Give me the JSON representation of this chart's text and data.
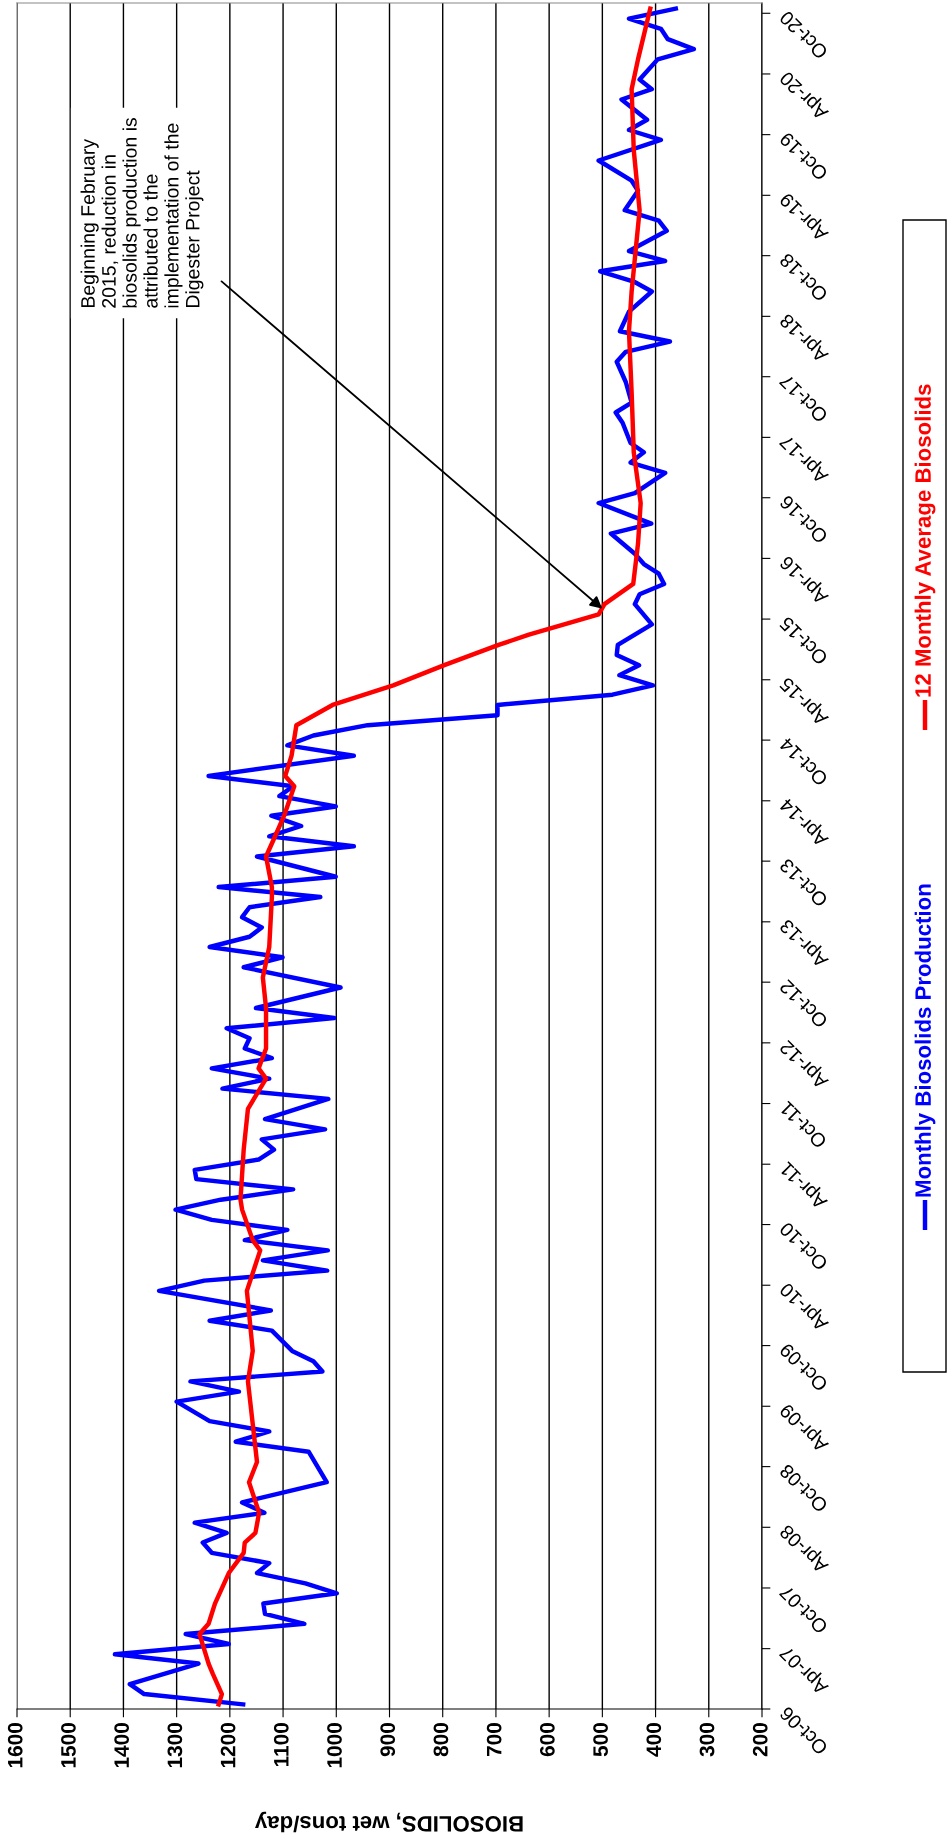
{
  "chart_data": {
    "type": "line",
    "orientation": "horizontal",
    "xlabel": "BIOSOLIDS, wet tons/day",
    "xlim": [
      1600,
      200
    ],
    "xticks": [
      1600,
      1500,
      1400,
      1300,
      1200,
      1100,
      1000,
      900,
      800,
      700,
      600,
      500,
      400,
      300,
      200
    ],
    "ylim": [
      "2006-10-01",
      "2020-11-01"
    ],
    "yticks": [
      {
        "value": "2006-10-01",
        "label": "Oct-06"
      },
      {
        "value": "2007-04-01",
        "label": "Apr-07"
      },
      {
        "value": "2007-10-01",
        "label": "Oct-07"
      },
      {
        "value": "2008-04-01",
        "label": "Apr-08"
      },
      {
        "value": "2008-10-01",
        "label": "Oct-08"
      },
      {
        "value": "2009-04-01",
        "label": "Apr-09"
      },
      {
        "value": "2009-10-01",
        "label": "Oct-09"
      },
      {
        "value": "2010-04-01",
        "label": "Apr-10"
      },
      {
        "value": "2010-10-01",
        "label": "Oct-10"
      },
      {
        "value": "2011-04-01",
        "label": "Apr-11"
      },
      {
        "value": "2011-10-01",
        "label": "Oct-11"
      },
      {
        "value": "2012-04-01",
        "label": "Apr-12"
      },
      {
        "value": "2012-10-01",
        "label": "Oct-12"
      },
      {
        "value": "2013-04-01",
        "label": "Apr-13"
      },
      {
        "value": "2013-10-01",
        "label": "Oct-13"
      },
      {
        "value": "2014-04-01",
        "label": "Apr-14"
      },
      {
        "value": "2014-10-01",
        "label": "Oct-14"
      },
      {
        "value": "2015-04-01",
        "label": "Apr-15"
      },
      {
        "value": "2015-10-01",
        "label": "Oct-15"
      },
      {
        "value": "2016-04-01",
        "label": "Apr-16"
      },
      {
        "value": "2016-10-01",
        "label": "Oct-16"
      },
      {
        "value": "2017-04-01",
        "label": "Apr-17"
      },
      {
        "value": "2017-10-01",
        "label": "Oct-17"
      },
      {
        "value": "2018-04-01",
        "label": "Apr-18"
      },
      {
        "value": "2018-10-01",
        "label": "Oct-18"
      },
      {
        "value": "2019-04-01",
        "label": "Apr-19"
      },
      {
        "value": "2019-10-01",
        "label": "Oct-19"
      },
      {
        "value": "2020-04-01",
        "label": "Apr-20"
      },
      {
        "value": "2020-10-01",
        "label": "Oct-20"
      }
    ],
    "grid": "x",
    "legend": "right",
    "line_style": "solid",
    "marker": "none",
    "annotations": [
      {
        "text": "Beginning February\n2015, reduction in\nbiosolids production is\nattributed to the\nimplementation of the\nDigester Project",
        "x": 500,
        "y": "2015-11-01"
      }
    ],
    "series": [
      {
        "name": "Monthly Biosolids Production",
        "color": "#0000ff",
        "x": [
          "2006-10-15",
          "2006-11-15",
          "2006-12-15",
          "2007-02-15",
          "2007-03-15",
          "2007-04-15",
          "2007-05-15",
          "2007-06-15",
          "2007-07-15",
          "2007-08-15",
          "2007-09-15",
          "2007-10-15",
          "2007-11-15",
          "2007-12-15",
          "2008-01-15",
          "2008-02-15",
          "2008-03-15",
          "2008-04-15",
          "2008-05-15",
          "2008-06-15",
          "2008-08-15",
          "2008-11-15",
          "2008-12-15",
          "2009-01-15",
          "2009-02-15",
          "2009-04-15",
          "2009-05-15",
          "2009-06-15",
          "2009-07-15",
          "2009-08-15",
          "2009-09-15",
          "2009-11-15",
          "2009-12-15",
          "2010-01-15",
          "2010-03-15",
          "2010-04-15",
          "2010-05-15",
          "2010-06-15",
          "2010-07-15",
          "2010-08-15",
          "2010-09-15",
          "2010-10-15",
          "2010-11-15",
          "2010-12-15",
          "2011-01-15",
          "2011-02-15",
          "2011-03-15",
          "2011-04-15",
          "2011-05-15",
          "2011-06-15",
          "2011-07-15",
          "2011-08-15",
          "2011-10-15",
          "2011-11-15",
          "2011-12-15",
          "2012-01-15",
          "2012-02-15",
          "2012-03-15",
          "2012-04-15",
          "2012-05-15",
          "2012-06-15",
          "2012-07-15",
          "2012-09-15",
          "2012-11-15",
          "2012-12-15",
          "2013-01-15",
          "2013-02-15",
          "2013-03-15",
          "2013-04-15",
          "2013-05-15",
          "2013-06-15",
          "2013-07-15",
          "2013-08-15",
          "2013-10-15",
          "2013-11-15",
          "2013-12-15",
          "2014-01-15",
          "2014-02-15",
          "2014-03-15",
          "2014-04-15",
          "2014-05-15",
          "2014-06-15",
          "2014-08-15",
          "2014-09-15",
          "2014-10-15",
          "2014-11-15",
          "2014-12-15",
          "2015-01-15",
          "2015-02-15",
          "2015-03-15",
          "2015-04-15",
          "2015-05-15",
          "2015-06-15",
          "2015-07-15",
          "2015-09-15",
          "2015-11-15",
          "2015-12-15",
          "2016-01-15",
          "2016-02-15",
          "2016-03-15",
          "2016-04-15",
          "2016-06-15",
          "2016-07-15",
          "2016-09-15",
          "2016-10-15",
          "2016-12-15",
          "2017-01-15",
          "2017-02-15",
          "2017-03-15",
          "2017-05-15",
          "2017-06-15",
          "2017-07-15",
          "2017-09-15",
          "2017-11-15",
          "2017-12-15",
          "2018-01-15",
          "2018-02-15",
          "2018-04-15",
          "2018-06-15",
          "2018-07-15",
          "2018-08-15",
          "2018-09-15",
          "2018-10-15",
          "2018-12-15",
          "2019-01-15",
          "2019-02-15",
          "2019-04-15",
          "2019-05-15",
          "2019-07-15",
          "2019-09-15",
          "2019-10-15",
          "2019-11-15",
          "2020-01-15",
          "2020-02-15",
          "2020-03-15",
          "2020-05-15",
          "2020-06-15",
          "2020-07-15",
          "2020-08-15",
          "2020-09-15",
          "2020-10-15"
        ],
        "values": [
          1175,
          1361,
          1388,
          1259,
          1416,
          1202,
          1283,
          1060,
          1134,
          1137,
          999,
          1058,
          1149,
          1126,
          1234,
          1251,
          1206,
          1266,
          1135,
          1177,
          1018,
          1052,
          1189,
          1126,
          1238,
          1300,
          1183,
          1274,
          1026,
          1043,
          1083,
          1121,
          1238,
          1123,
          1333,
          1248,
          1017,
          1138,
          1016,
          1172,
          1092,
          1234,
          1302,
          1217,
          1081,
          1263,
          1266,
          1146,
          1117,
          1140,
          1021,
          1134,
          1015,
          1214,
          1126,
          1234,
          1121,
          1172,
          1163,
          1206,
          1004,
          1151,
          992,
          1174,
          1101,
          1238,
          1163,
          1140,
          1177,
          1163,
          1030,
          1221,
          1001,
          1149,
          967,
          1126,
          1066,
          1122,
          1001,
          1107,
          1081,
          1240,
          967,
          1092,
          1043,
          941,
          697,
          697,
          481,
          405,
          468,
          431,
          473,
          471,
          407,
          439,
          430,
          384,
          394,
          422,
          439,
          484,
          408,
          507,
          439,
          382,
          447,
          422,
          447,
          462,
          475,
          445,
          456,
          473,
          456,
          373,
          467,
          450,
          407,
          441,
          504,
          382,
          450,
          379,
          394,
          458,
          433,
          445,
          507,
          390,
          450,
          416,
          464,
          407,
          430,
          396,
          328,
          377,
          390,
          450,
          362
        ]
      },
      {
        "name": "12 Monthly Average Biosolids",
        "color": "#ff0000",
        "x": [
          "2006-10-15",
          "2006-11-15",
          "2007-01-15",
          "2007-02-15",
          "2007-05-15",
          "2007-06-15",
          "2007-08-15",
          "2007-11-15",
          "2008-01-15",
          "2008-02-15",
          "2008-03-15",
          "2008-05-15",
          "2008-08-15",
          "2008-10-15",
          "2009-06-15",
          "2009-09-15",
          "2010-03-15",
          "2010-07-15",
          "2010-08-15",
          "2010-11-15",
          "2010-12-15",
          "2011-05-15",
          "2011-09-15",
          "2011-12-15",
          "2012-01-15",
          "2012-03-15",
          "2012-07-15",
          "2012-10-15",
          "2013-01-15",
          "2013-06-15",
          "2013-07-15",
          "2013-10-15",
          "2013-12-15",
          "2014-02-15",
          "2014-05-15",
          "2014-06-15",
          "2014-08-15",
          "2014-11-15",
          "2015-01-15",
          "2015-03-15",
          "2015-05-15",
          "2015-07-15",
          "2015-08-15",
          "2015-10-15",
          "2015-11-15",
          "2016-01-15",
          "2016-05-15",
          "2016-09-15",
          "2017-02-15",
          "2017-08-15",
          "2018-02-15",
          "2018-06-15",
          "2019-02-15",
          "2019-08-15",
          "2020-02-15",
          "2020-05-15",
          "2020-10-15"
        ],
        "values": [
          1221,
          1215,
          1232,
          1240,
          1257,
          1240,
          1228,
          1202,
          1174,
          1172,
          1152,
          1145,
          1164,
          1149,
          1166,
          1157,
          1168,
          1143,
          1157,
          1177,
          1180,
          1174,
          1166,
          1132,
          1146,
          1132,
          1132,
          1138,
          1126,
          1121,
          1121,
          1132,
          1115,
          1098,
          1079,
          1096,
          1084,
          1075,
          1007,
          893,
          797,
          695,
          638,
          507,
          496,
          442,
          433,
          428,
          441,
          445,
          450,
          445,
          430,
          441,
          445,
          433,
          410
        ]
      }
    ]
  }
}
